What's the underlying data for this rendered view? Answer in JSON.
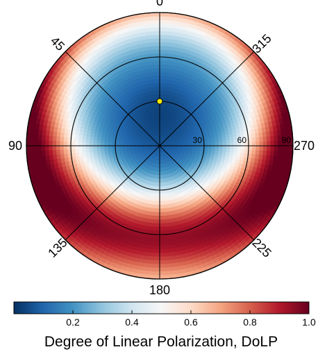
{
  "chart_data": {
    "type": "heatmap",
    "subtype": "polar",
    "title": "",
    "azimuth_labels": [
      {
        "angle": 0,
        "text": "0"
      },
      {
        "angle": 45,
        "text": "45"
      },
      {
        "angle": 90,
        "text": "90"
      },
      {
        "angle": 135,
        "text": "135"
      },
      {
        "angle": 180,
        "text": "180"
      },
      {
        "angle": 225,
        "text": "225"
      },
      {
        "angle": 270,
        "text": "270"
      },
      {
        "angle": 315,
        "text": "315"
      }
    ],
    "azimuth_direction": "counterclockwise",
    "radial_labels": [
      {
        "value": 30,
        "text": "30"
      },
      {
        "value": 60,
        "text": "60"
      },
      {
        "value": 90,
        "text": "90"
      }
    ],
    "rlim": [
      0,
      90
    ],
    "marker": {
      "azimuth": 0,
      "zenith": 30,
      "color": "#ffee00",
      "name": "sun"
    },
    "colorbar": {
      "label": "Degree of Linear Polarization, DoLP",
      "ticks": [
        {
          "value": 0.2,
          "text": "0.2"
        },
        {
          "value": 0.4,
          "text": "0.4"
        },
        {
          "value": 0.6,
          "text": "0.6"
        },
        {
          "value": 0.8,
          "text": "0.8"
        },
        {
          "value": 1.0,
          "text": "1.0"
        }
      ],
      "vlim": [
        0,
        1
      ],
      "colormap": "RdBu_r",
      "colors": [
        "#053061",
        "#2166ac",
        "#4393c3",
        "#92c5de",
        "#d1e5f0",
        "#f7f7f7",
        "#fddbc7",
        "#f4a582",
        "#d6604d",
        "#b2182b",
        "#67001f"
      ]
    },
    "field_samples": [
      {
        "azimuth": 0,
        "zenith": 0,
        "dolp": 0.22
      },
      {
        "azimuth": 0,
        "zenith": 45,
        "dolp": 0.1
      },
      {
        "azimuth": 0,
        "zenith": 90,
        "dolp": 0.4
      },
      {
        "azimuth": 90,
        "zenith": 90,
        "dolp": 0.6
      },
      {
        "azimuth": 270,
        "zenith": 90,
        "dolp": 0.58
      },
      {
        "azimuth": 180,
        "zenith": 30,
        "dolp": 0.45
      },
      {
        "azimuth": 180,
        "zenith": 60,
        "dolp": 0.72
      },
      {
        "azimuth": 180,
        "zenith": 90,
        "dolp": 0.45
      }
    ]
  }
}
